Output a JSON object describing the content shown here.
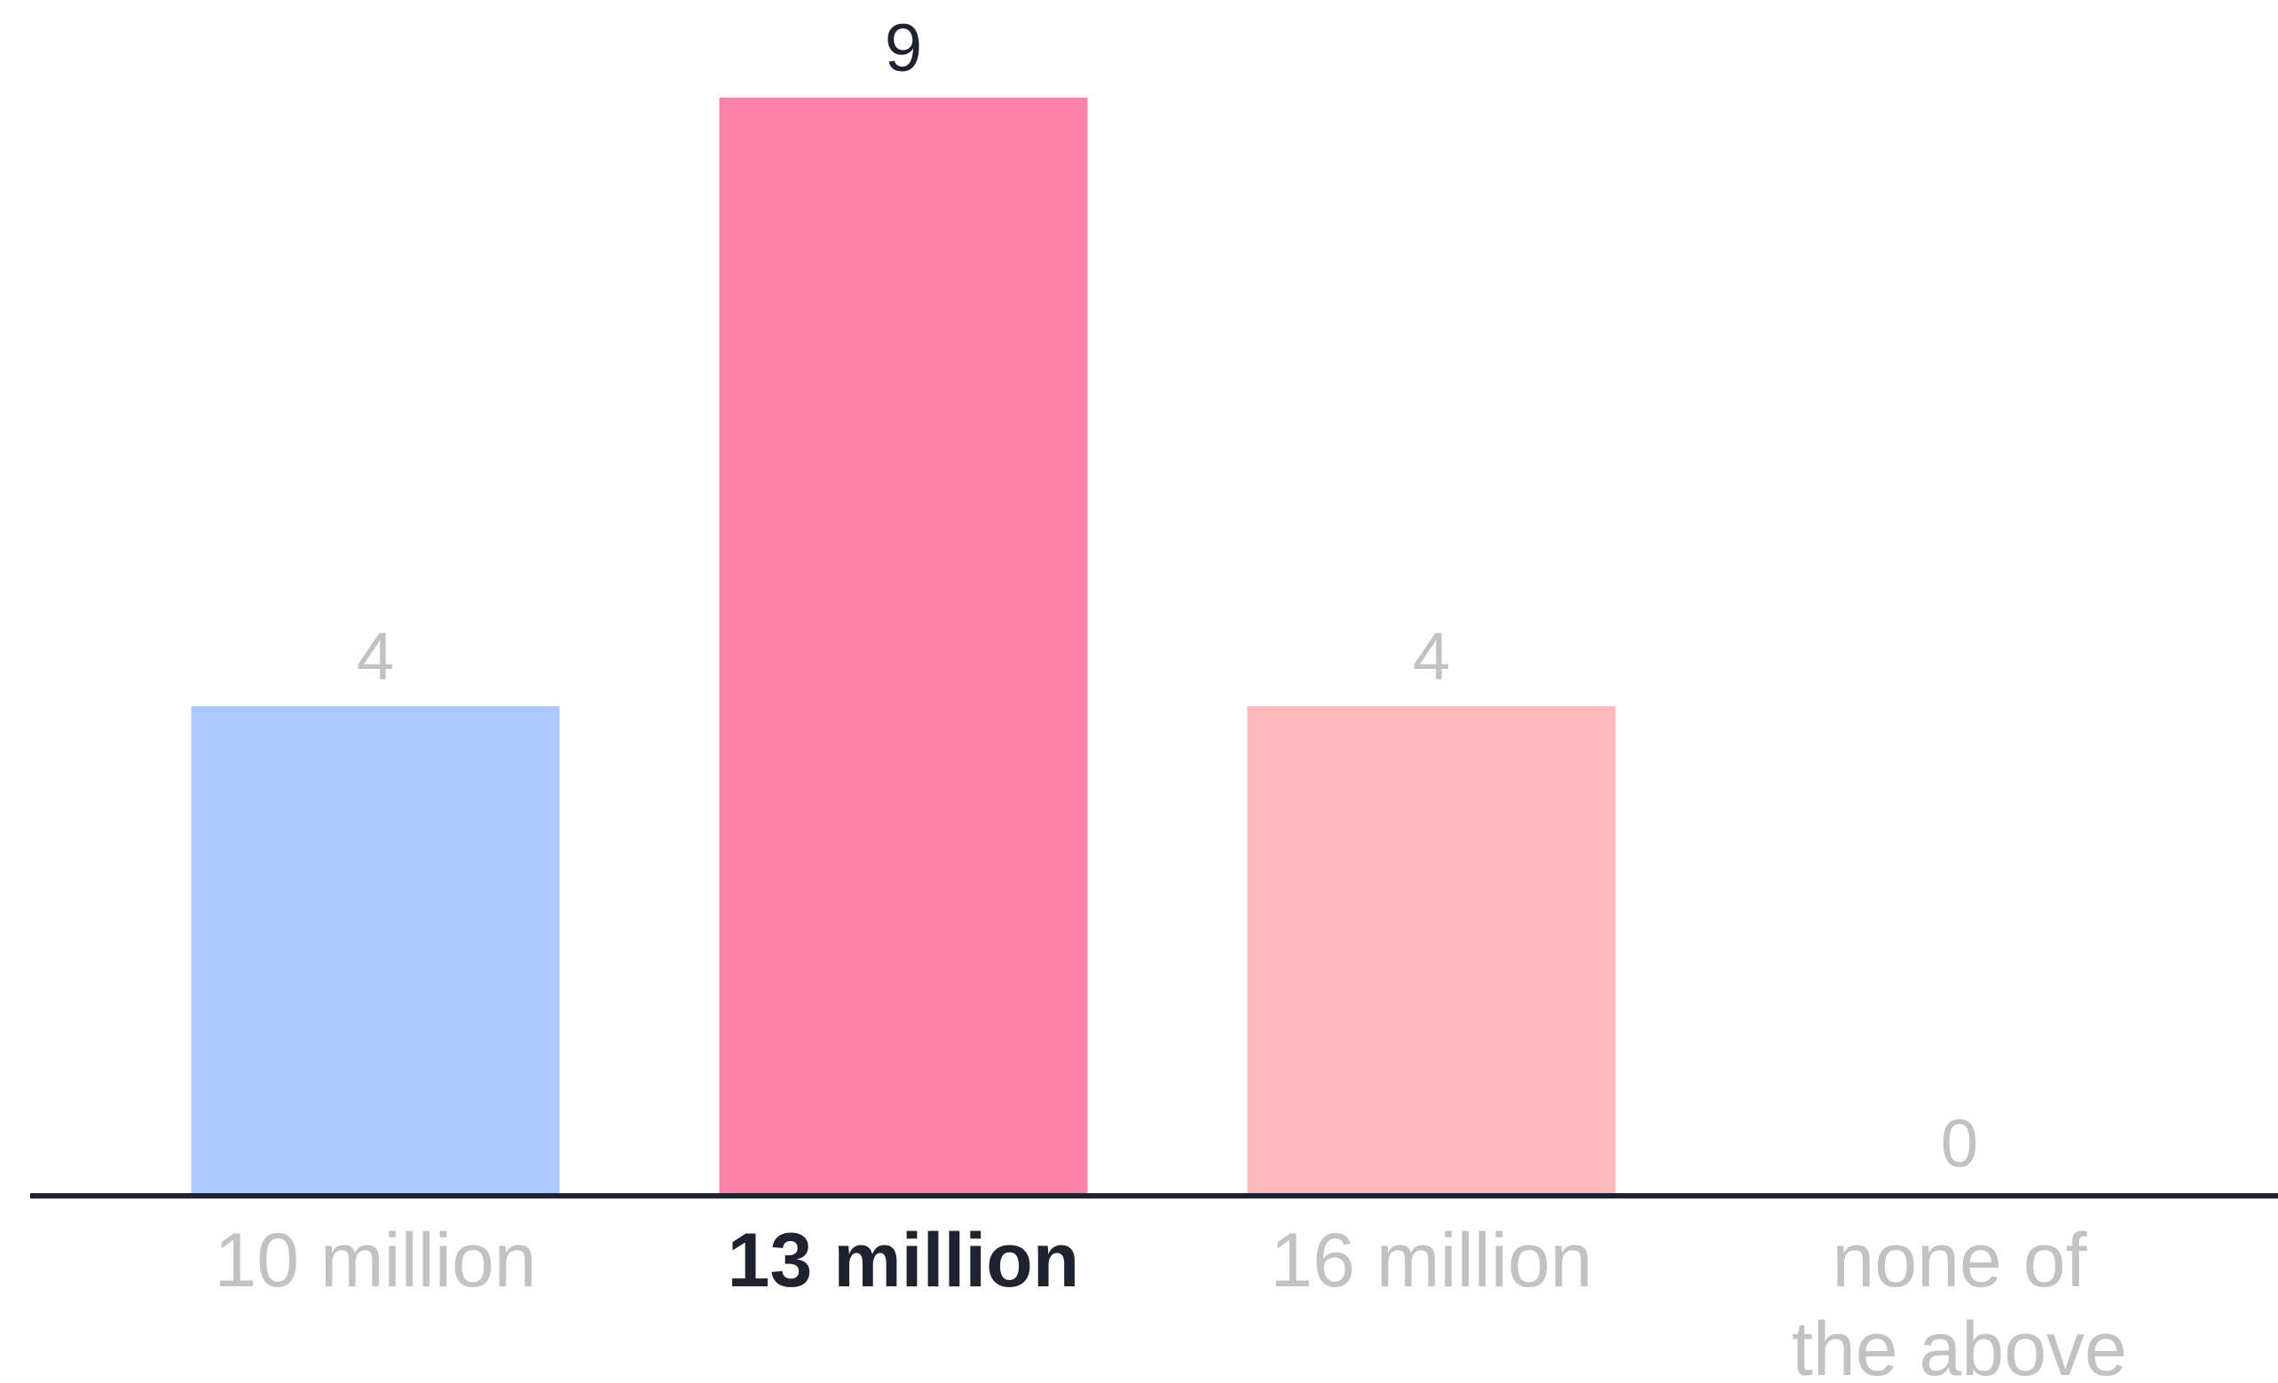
{
  "chart_data": {
    "type": "bar",
    "categories": [
      "10 million",
      "13 million",
      "16 million",
      "none of the above"
    ],
    "category_lines": [
      [
        "10 million"
      ],
      [
        "13 million"
      ],
      [
        "16 million"
      ],
      [
        "none of",
        "the above"
      ]
    ],
    "values": [
      4,
      9,
      4,
      0
    ],
    "bar_colors": [
      "#adc8ff",
      "#ff82aa",
      "#ffb9bc",
      "#ffffff"
    ],
    "highlighted_category": "13 million",
    "label_colors": {
      "normal": "#c2c2c2",
      "highlighted": "#1f2330"
    },
    "axis_color": "#1f2330",
    "ylim": [
      0,
      9
    ],
    "title": "",
    "xlabel": "",
    "ylabel": "",
    "grid": false,
    "legend": "none"
  }
}
